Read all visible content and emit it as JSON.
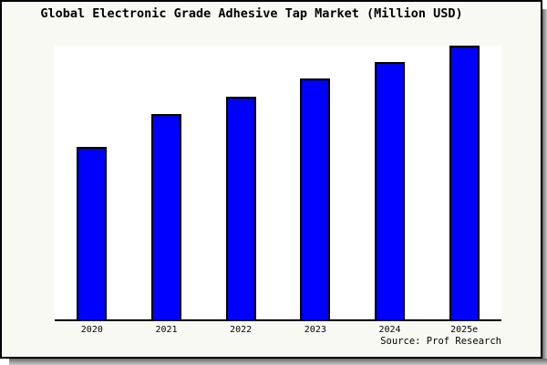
{
  "title": "Global Electronic Grade Adhesive Tap Market (Million USD)",
  "source_credit": "Source: Prof Research",
  "colors": {
    "bar_fill": "#0000ff",
    "bar_border": "#000000",
    "figure_background": "#f9f9f4",
    "plot_background": "#ffffff",
    "figure_border": "#000000",
    "shadow": "#8a8a8a",
    "text": "#000000"
  },
  "chart_data": {
    "type": "bar",
    "title": "Global Electronic Grade Adhesive Tap Market (Million USD)",
    "categories": [
      "2020",
      "2021",
      "2022",
      "2023",
      "2024",
      "2025e"
    ],
    "values": [
      63,
      75,
      81.5,
      88,
      94,
      100
    ],
    "xlabel": "",
    "ylabel": "",
    "ylim": [
      0,
      100
    ],
    "y_axis_labels_shown": false,
    "grid": false,
    "legend": false,
    "note": "No y-axis scale is rendered in the image; values are relative bar heights normalized so 2025e = 100."
  }
}
